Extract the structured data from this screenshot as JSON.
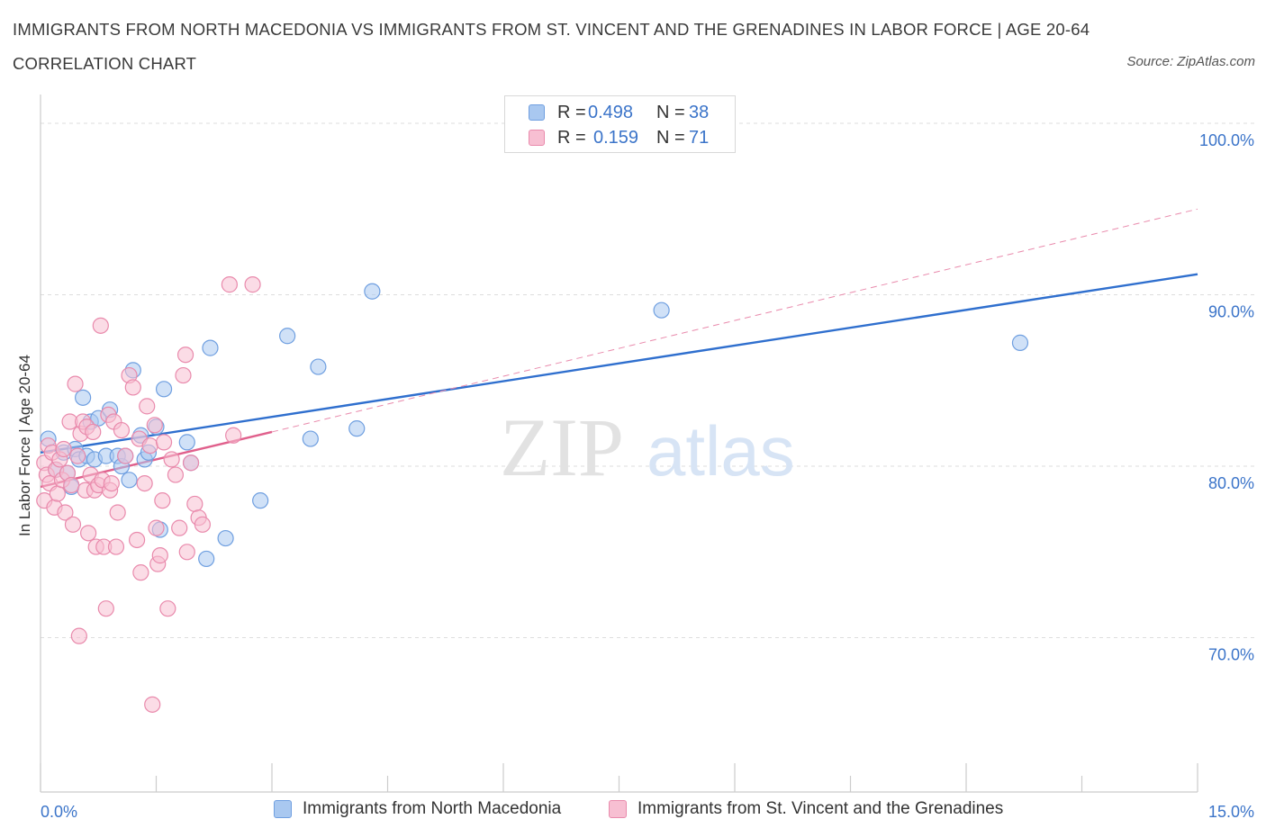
{
  "title": "IMMIGRANTS FROM NORTH MACEDONIA VS IMMIGRANTS FROM ST. VINCENT AND THE GRENADINES IN LABOR FORCE | AGE 20-64 CORRELATION CHART",
  "source": "Source: ZipAtlas.com",
  "watermark": {
    "zip": "ZIP",
    "atlas": "atlas"
  },
  "legend": {
    "rows": [
      {
        "r_label": "R =",
        "r_value": "0.498",
        "n_label": "N =",
        "n_value": "38",
        "color": "#a9c8f0",
        "border": "#6f9fe0"
      },
      {
        "r_label": "R =",
        "r_value": "0.159",
        "n_label": "N =",
        "n_value": "71",
        "color": "#f7bfd2",
        "border": "#e98aac"
      }
    ]
  },
  "bottom_legend": [
    {
      "label": "Immigrants from North Macedonia",
      "color": "#a9c8f0",
      "border": "#6f9fe0"
    },
    {
      "label": "Immigrants from St. Vincent and the Grenadines",
      "color": "#f7bfd2",
      "border": "#e98aac"
    }
  ],
  "chart_data": {
    "type": "scatter",
    "xlabel": "",
    "ylabel": "In Labor Force | Age 20-64",
    "xlim": [
      0,
      15
    ],
    "ylim": [
      61,
      101
    ],
    "x_tick_labels": {
      "min": "0.0%",
      "max": "15.0%"
    },
    "y_ticks": [
      {
        "value": 100,
        "label": "100.0%"
      },
      {
        "value": 90,
        "label": "90.0%"
      },
      {
        "value": 80,
        "label": "80.0%"
      },
      {
        "value": 70,
        "label": "70.0%"
      }
    ],
    "series": [
      {
        "name": "Immigrants from North Macedonia",
        "color": "#a9c8f0",
        "stroke": "#6f9fe0",
        "trend": {
          "x0": 0.0,
          "y0": 80.8,
          "x1": 15.0,
          "y1": 91.2,
          "color": "#2f6fce",
          "style": "solid"
        },
        "points": [
          [
            0.1,
            81.6
          ],
          [
            0.2,
            79.8
          ],
          [
            0.3,
            80.8
          ],
          [
            0.35,
            79.6
          ],
          [
            0.4,
            78.8
          ],
          [
            0.45,
            81.0
          ],
          [
            0.5,
            80.4
          ],
          [
            0.55,
            84.0
          ],
          [
            0.6,
            80.6
          ],
          [
            0.65,
            82.6
          ],
          [
            0.7,
            80.4
          ],
          [
            0.75,
            82.8
          ],
          [
            0.85,
            80.6
          ],
          [
            0.9,
            83.3
          ],
          [
            1.0,
            80.6
          ],
          [
            1.05,
            80.0
          ],
          [
            1.1,
            80.6
          ],
          [
            1.15,
            79.2
          ],
          [
            1.2,
            85.6
          ],
          [
            1.3,
            81.8
          ],
          [
            1.35,
            80.4
          ],
          [
            1.4,
            80.8
          ],
          [
            1.5,
            82.3
          ],
          [
            1.55,
            76.3
          ],
          [
            1.6,
            84.5
          ],
          [
            1.9,
            81.4
          ],
          [
            1.95,
            80.2
          ],
          [
            2.15,
            74.6
          ],
          [
            2.2,
            86.9
          ],
          [
            2.4,
            75.8
          ],
          [
            2.85,
            78.0
          ],
          [
            3.2,
            87.6
          ],
          [
            3.5,
            81.6
          ],
          [
            3.6,
            85.8
          ],
          [
            4.1,
            82.2
          ],
          [
            4.3,
            90.2
          ],
          [
            8.05,
            89.1
          ],
          [
            12.7,
            87.2
          ]
        ]
      },
      {
        "name": "Immigrants from St. Vincent and the Grenadines",
        "color": "#f7bfd2",
        "stroke": "#e98aac",
        "trend": {
          "x0": 0.0,
          "y0": 78.8,
          "x1": 3.0,
          "y1": 82.0,
          "color": "#e0608c",
          "style": "solid"
        },
        "trend_extended": {
          "x0": 3.0,
          "y0": 82.0,
          "x1": 15.0,
          "y1": 95.0,
          "color": "#e98aac",
          "style": "dashed"
        },
        "points": [
          [
            0.05,
            80.2
          ],
          [
            0.05,
            78.0
          ],
          [
            0.08,
            79.5
          ],
          [
            0.1,
            81.2
          ],
          [
            0.12,
            79.0
          ],
          [
            0.15,
            80.8
          ],
          [
            0.18,
            77.6
          ],
          [
            0.2,
            79.8
          ],
          [
            0.22,
            78.4
          ],
          [
            0.25,
            80.4
          ],
          [
            0.28,
            79.2
          ],
          [
            0.3,
            81.0
          ],
          [
            0.32,
            77.3
          ],
          [
            0.35,
            79.6
          ],
          [
            0.38,
            82.6
          ],
          [
            0.4,
            78.9
          ],
          [
            0.42,
            76.6
          ],
          [
            0.45,
            84.8
          ],
          [
            0.48,
            80.6
          ],
          [
            0.5,
            70.1
          ],
          [
            0.52,
            81.9
          ],
          [
            0.55,
            82.6
          ],
          [
            0.58,
            78.6
          ],
          [
            0.6,
            82.3
          ],
          [
            0.62,
            76.1
          ],
          [
            0.65,
            79.5
          ],
          [
            0.68,
            82.0
          ],
          [
            0.7,
            78.6
          ],
          [
            0.72,
            75.3
          ],
          [
            0.75,
            78.9
          ],
          [
            0.78,
            88.2
          ],
          [
            0.8,
            79.2
          ],
          [
            0.82,
            75.3
          ],
          [
            0.85,
            71.7
          ],
          [
            0.88,
            83.0
          ],
          [
            0.9,
            78.6
          ],
          [
            0.92,
            79.0
          ],
          [
            0.95,
            82.6
          ],
          [
            0.98,
            75.3
          ],
          [
            1.0,
            77.3
          ],
          [
            1.05,
            82.1
          ],
          [
            1.1,
            80.6
          ],
          [
            1.15,
            85.3
          ],
          [
            1.2,
            84.6
          ],
          [
            1.25,
            75.7
          ],
          [
            1.28,
            81.6
          ],
          [
            1.3,
            73.8
          ],
          [
            1.35,
            79.0
          ],
          [
            1.38,
            83.5
          ],
          [
            1.42,
            81.2
          ],
          [
            1.45,
            66.1
          ],
          [
            1.48,
            82.4
          ],
          [
            1.5,
            76.4
          ],
          [
            1.52,
            74.3
          ],
          [
            1.55,
            74.8
          ],
          [
            1.58,
            78.0
          ],
          [
            1.6,
            81.4
          ],
          [
            1.65,
            71.7
          ],
          [
            1.7,
            80.4
          ],
          [
            1.75,
            79.5
          ],
          [
            1.8,
            76.4
          ],
          [
            1.85,
            85.3
          ],
          [
            1.88,
            86.5
          ],
          [
            1.9,
            75.0
          ],
          [
            1.95,
            80.2
          ],
          [
            2.0,
            77.8
          ],
          [
            2.05,
            77.0
          ],
          [
            2.1,
            76.6
          ],
          [
            2.5,
            81.8
          ],
          [
            2.45,
            90.6
          ],
          [
            2.75,
            90.6
          ]
        ]
      }
    ]
  }
}
